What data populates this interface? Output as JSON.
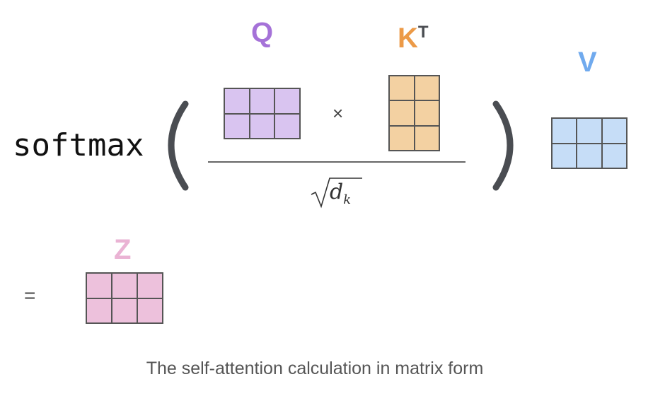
{
  "function_label": "softmax",
  "operator_times": "×",
  "operator_equals": "=",
  "denominator": {
    "radical": "√",
    "symbol": "d",
    "subscript": "k"
  },
  "matrices": {
    "q": {
      "label": "Q",
      "rows": 2,
      "cols": 3,
      "fill": "#d9c4f0",
      "label_color": "#a572d8"
    },
    "k": {
      "label": "K",
      "superscript": "T",
      "rows": 3,
      "cols": 2,
      "fill": "#f3d1a2",
      "label_color": "#ec9a47"
    },
    "v": {
      "label": "V",
      "rows": 2,
      "cols": 3,
      "fill": "#c6ddf7",
      "label_color": "#70aaee"
    },
    "z": {
      "label": "Z",
      "rows": 2,
      "cols": 3,
      "fill": "#edc1dc",
      "label_color": "#eab3d4"
    }
  },
  "caption": "The self-attention calculation in matrix form"
}
